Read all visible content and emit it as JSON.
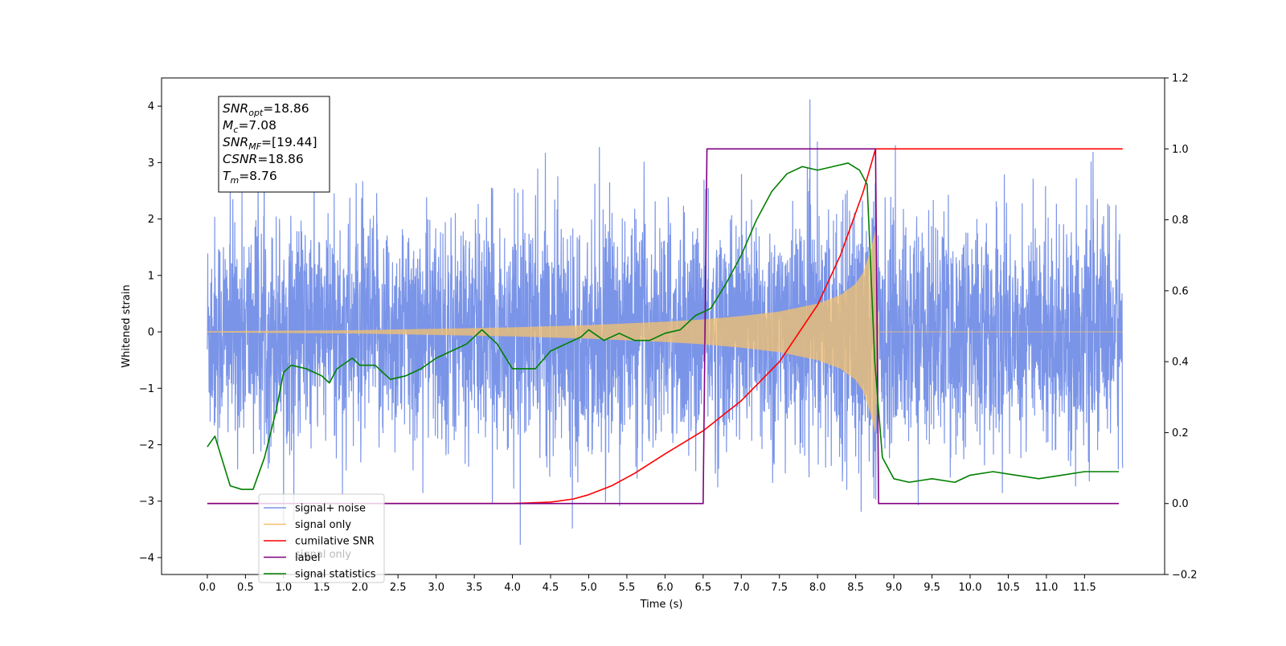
{
  "chart_data": {
    "type": "line",
    "xlabel": "Time (s)",
    "ylabel": "Whitened strain",
    "xlim": [
      -0.6,
      12.55
    ],
    "ylim": [
      -4.3,
      4.5
    ],
    "y2lim": [
      -0.2,
      1.2
    ],
    "x_ticks": [
      "0.0",
      "0.5",
      "1.0",
      "1.5",
      "2.0",
      "2.5",
      "3.0",
      "3.5",
      "4.0",
      "4.5",
      "5.0",
      "5.5",
      "6.0",
      "6.5",
      "7.0",
      "7.5",
      "8.0",
      "8.5",
      "9.0",
      "9.5",
      "10.0",
      "10.5",
      "11.0",
      "11.5"
    ],
    "y_ticks": [
      "−4",
      "−3",
      "−2",
      "−1",
      "0",
      "1",
      "2",
      "3",
      "4"
    ],
    "y2_ticks": [
      "−0.2",
      "0.0",
      "0.2",
      "0.4",
      "0.6",
      "0.8",
      "1.0",
      "1.2"
    ],
    "annotation": {
      "lines": [
        {
          "name": "SNR",
          "sub": "opt",
          "value": "=18.86"
        },
        {
          "name": "M",
          "sub": "c",
          "value": "=7.08"
        },
        {
          "name": "SNR",
          "sub": "MF",
          "value": "=[19.44]"
        },
        {
          "name": "CSNR",
          "sub": "",
          "value": "=18.86"
        },
        {
          "name": "T",
          "sub": "m",
          "value": "=8.76"
        }
      ]
    },
    "legend": {
      "placement": "lower-left",
      "entries": [
        {
          "label": "signal+ noise",
          "color": "#7a94e8"
        },
        {
          "label": "signal only",
          "color": "#f5c16c"
        },
        {
          "label": "cumilative SNR",
          "color": "#ff0000"
        },
        {
          "label": "label",
          "color": "#800080"
        },
        {
          "label": "signal statistics",
          "color": "#008000"
        }
      ],
      "occluded_text": "signal only"
    },
    "series": [
      {
        "name": "signal+ noise",
        "axis": "left",
        "color": "#7a94e8",
        "x_range": [
          0.0,
          12.0
        ],
        "noise_std": 1.0,
        "noise_min": -3.9,
        "noise_max": 4.12
      },
      {
        "name": "signal only",
        "axis": "left",
        "color": "#f5c16c",
        "envelope": {
          "x": [
            0.0,
            2.0,
            4.0,
            5.0,
            6.0,
            6.5,
            7.0,
            7.5,
            8.0,
            8.3,
            8.5,
            8.6,
            8.7,
            8.76,
            8.8,
            12.0
          ],
          "amp": [
            0.01,
            0.03,
            0.08,
            0.12,
            0.18,
            0.22,
            0.28,
            0.36,
            0.5,
            0.65,
            0.85,
            1.05,
            1.45,
            1.8,
            0.0,
            0.0
          ]
        }
      },
      {
        "name": "cumilative SNR",
        "axis": "right",
        "color": "#ff0000",
        "x": [
          0.0,
          4.0,
          4.5,
          4.8,
          5.0,
          5.3,
          5.6,
          6.0,
          6.5,
          7.0,
          7.5,
          8.0,
          8.3,
          8.6,
          8.76,
          8.77,
          12.0
        ],
        "y": [
          0.0,
          0.0,
          0.004,
          0.013,
          0.025,
          0.05,
          0.085,
          0.14,
          0.205,
          0.29,
          0.4,
          0.56,
          0.7,
          0.88,
          1.0,
          1.0,
          1.0
        ]
      },
      {
        "name": "label",
        "axis": "right",
        "color": "#800080",
        "x": [
          0.0,
          6.5,
          6.55,
          8.76,
          8.8,
          11.95
        ],
        "y": [
          0.0,
          0.0,
          1.0,
          1.0,
          0.0,
          0.0
        ]
      },
      {
        "name": "signal statistics",
        "axis": "right",
        "color": "#008000",
        "x": [
          0.0,
          0.1,
          0.2,
          0.3,
          0.45,
          0.6,
          0.75,
          0.9,
          1.0,
          1.1,
          1.3,
          1.5,
          1.6,
          1.7,
          1.9,
          2.0,
          2.2,
          2.4,
          2.6,
          2.8,
          3.0,
          3.2,
          3.4,
          3.6,
          3.8,
          4.0,
          4.3,
          4.5,
          4.7,
          4.9,
          5.0,
          5.2,
          5.4,
          5.6,
          5.8,
          6.0,
          6.2,
          6.4,
          6.6,
          6.8,
          7.0,
          7.2,
          7.4,
          7.6,
          7.8,
          8.0,
          8.2,
          8.4,
          8.55,
          8.65,
          8.75,
          8.85,
          9.0,
          9.2,
          9.5,
          9.8,
          10.0,
          10.3,
          10.6,
          10.9,
          11.2,
          11.5,
          11.8,
          11.95
        ],
        "y": [
          0.16,
          0.19,
          0.12,
          0.05,
          0.04,
          0.04,
          0.13,
          0.26,
          0.37,
          0.39,
          0.38,
          0.36,
          0.34,
          0.38,
          0.41,
          0.39,
          0.39,
          0.35,
          0.36,
          0.38,
          0.41,
          0.43,
          0.45,
          0.49,
          0.45,
          0.38,
          0.38,
          0.43,
          0.45,
          0.47,
          0.49,
          0.46,
          0.48,
          0.46,
          0.46,
          0.48,
          0.49,
          0.53,
          0.55,
          0.62,
          0.7,
          0.8,
          0.88,
          0.93,
          0.95,
          0.94,
          0.95,
          0.96,
          0.94,
          0.9,
          0.4,
          0.13,
          0.07,
          0.06,
          0.07,
          0.06,
          0.08,
          0.09,
          0.08,
          0.07,
          0.08,
          0.09,
          0.09,
          0.09
        ]
      }
    ]
  }
}
